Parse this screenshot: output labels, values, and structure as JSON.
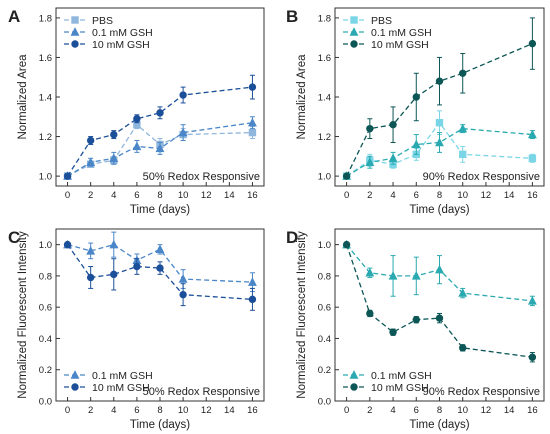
{
  "chart_data": [
    {
      "panel": "A",
      "type": "line",
      "xlabel": "Time (days)",
      "ylabel": "Normalized Area",
      "xlim": [
        -1,
        17
      ],
      "ylim": [
        0.95,
        1.85
      ],
      "xticks": [
        0,
        2,
        4,
        6,
        8,
        10,
        12,
        14,
        16
      ],
      "yticks": [
        1.0,
        1.2,
        1.4,
        1.6,
        1.8
      ],
      "annotation": "50% Redox Responsive",
      "legend_position": "top-left",
      "series": [
        {
          "name": "PBS",
          "color": "#8fb6dc",
          "marker": "square",
          "x": [
            0,
            2,
            4,
            6,
            8,
            10,
            16
          ],
          "y": [
            1.0,
            1.06,
            1.08,
            1.26,
            1.16,
            1.21,
            1.22
          ],
          "err": [
            0.01,
            0.01,
            0.02,
            0.02,
            0.03,
            0.03,
            0.03
          ]
        },
        {
          "name": "0.1 mM GSH",
          "color": "#4a86c8",
          "marker": "triangle",
          "x": [
            0,
            2,
            4,
            6,
            8,
            10,
            16
          ],
          "y": [
            1.0,
            1.07,
            1.09,
            1.15,
            1.14,
            1.22,
            1.27
          ],
          "err": [
            0.01,
            0.02,
            0.03,
            0.03,
            0.03,
            0.04,
            0.03
          ]
        },
        {
          "name": "10 mM GSH",
          "color": "#1c4f99",
          "marker": "circle",
          "x": [
            0,
            2,
            4,
            6,
            8,
            10,
            16
          ],
          "y": [
            1.0,
            1.18,
            1.21,
            1.29,
            1.32,
            1.41,
            1.45
          ],
          "err": [
            0.01,
            0.02,
            0.02,
            0.02,
            0.03,
            0.04,
            0.06
          ]
        }
      ]
    },
    {
      "panel": "B",
      "type": "line",
      "xlabel": "Time (days)",
      "ylabel": "Normalized Area",
      "xlim": [
        -1,
        17
      ],
      "ylim": [
        0.95,
        1.85
      ],
      "xticks": [
        0,
        2,
        4,
        6,
        8,
        10,
        12,
        14,
        16
      ],
      "yticks": [
        1.0,
        1.2,
        1.4,
        1.6,
        1.8
      ],
      "annotation": "90% Redox Responsive",
      "legend_position": "top-left",
      "series": [
        {
          "name": "PBS",
          "color": "#7ad6e6",
          "marker": "square",
          "x": [
            0,
            2,
            4,
            6,
            8,
            10,
            16
          ],
          "y": [
            1.0,
            1.08,
            1.06,
            1.11,
            1.27,
            1.11,
            1.09
          ],
          "err": [
            0.01,
            0.03,
            0.02,
            0.03,
            0.06,
            0.04,
            0.02
          ]
        },
        {
          "name": "0.1 mM GSH",
          "color": "#2aaab0",
          "marker": "triangle",
          "x": [
            0,
            2,
            4,
            6,
            8,
            10,
            16
          ],
          "y": [
            1.0,
            1.07,
            1.09,
            1.16,
            1.17,
            1.24,
            1.21
          ],
          "err": [
            0.01,
            0.03,
            0.03,
            0.05,
            0.05,
            0.02,
            0.02
          ]
        },
        {
          "name": "10 mM GSH",
          "color": "#0d5656",
          "marker": "circle",
          "x": [
            0,
            2,
            4,
            6,
            8,
            10,
            16
          ],
          "y": [
            1.0,
            1.24,
            1.26,
            1.4,
            1.48,
            1.52,
            1.67
          ],
          "err": [
            0.01,
            0.05,
            0.09,
            0.12,
            0.12,
            0.1,
            0.13
          ]
        }
      ]
    },
    {
      "panel": "C",
      "type": "line",
      "xlabel": "Time (days)",
      "ylabel": "Normalized Fluorescent Intensity",
      "xlim": [
        -1,
        17
      ],
      "ylim": [
        0.0,
        1.1
      ],
      "xticks": [
        0,
        2,
        4,
        6,
        8,
        10,
        12,
        14,
        16
      ],
      "yticks": [
        0.0,
        0.2,
        0.4,
        0.6,
        0.8,
        1.0
      ],
      "annotation": "50% Redox Responsive",
      "legend_position": "bottom-left",
      "series": [
        {
          "name": "0.1 mM GSH",
          "color": "#4a86c8",
          "marker": "triangle",
          "x": [
            0,
            2,
            4,
            6,
            8,
            10,
            16
          ],
          "y": [
            1.0,
            0.96,
            1.0,
            0.9,
            0.97,
            0.78,
            0.76
          ],
          "err": [
            0.01,
            0.05,
            0.08,
            0.04,
            0.03,
            0.06,
            0.06
          ]
        },
        {
          "name": "10 mM GSH",
          "color": "#1c4f99",
          "marker": "circle",
          "x": [
            0,
            2,
            4,
            6,
            8,
            10,
            16
          ],
          "y": [
            1.0,
            0.79,
            0.81,
            0.86,
            0.85,
            0.68,
            0.65
          ],
          "err": [
            0.01,
            0.07,
            0.1,
            0.05,
            0.04,
            0.07,
            0.07
          ]
        }
      ]
    },
    {
      "panel": "D",
      "type": "line",
      "xlabel": "Time (days)",
      "ylabel": "Normalized Fluorescent Intensity",
      "xlim": [
        -1,
        17
      ],
      "ylim": [
        0.0,
        1.1
      ],
      "xticks": [
        0,
        2,
        4,
        6,
        8,
        10,
        12,
        14,
        16
      ],
      "yticks": [
        0.0,
        0.2,
        0.4,
        0.6,
        0.8,
        1.0
      ],
      "annotation": "90% Redox Responsive",
      "legend_position": "bottom-left",
      "series": [
        {
          "name": "0.1 mM GSH",
          "color": "#2aaab0",
          "marker": "triangle",
          "x": [
            0,
            2,
            4,
            6,
            8,
            10,
            16
          ],
          "y": [
            1.0,
            0.82,
            0.8,
            0.8,
            0.84,
            0.69,
            0.64
          ],
          "err": [
            0.01,
            0.03,
            0.13,
            0.12,
            0.09,
            0.03,
            0.03
          ]
        },
        {
          "name": "10 mM GSH",
          "color": "#0d5656",
          "marker": "circle",
          "x": [
            0,
            2,
            4,
            6,
            8,
            10,
            16
          ],
          "y": [
            1.0,
            0.56,
            0.44,
            0.52,
            0.53,
            0.34,
            0.28
          ],
          "err": [
            0.01,
            0.02,
            0.02,
            0.02,
            0.03,
            0.02,
            0.03
          ]
        }
      ]
    }
  ]
}
